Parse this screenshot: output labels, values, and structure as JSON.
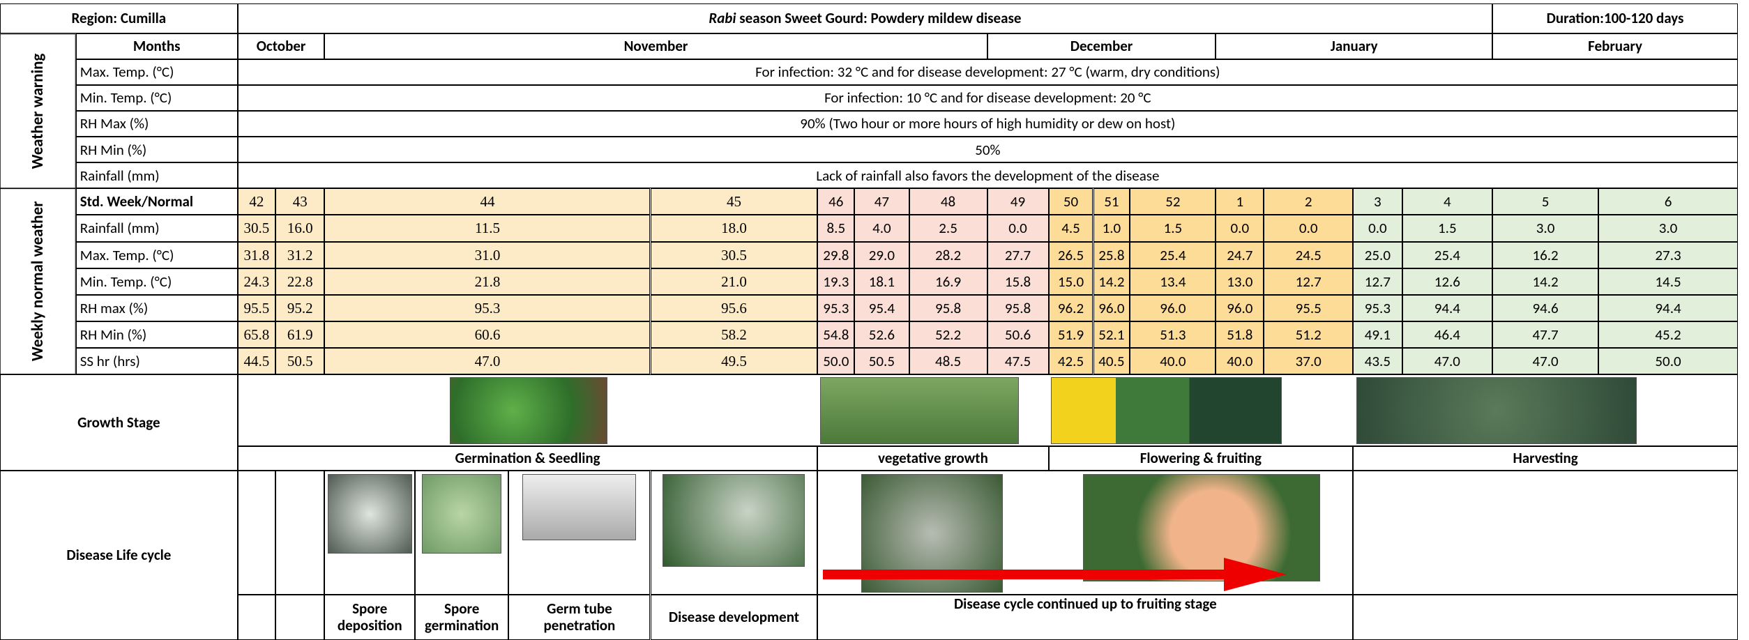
{
  "header": {
    "region": "Region: Cumilla",
    "title_italic": "Rabi",
    "title_rest": " season Sweet Gourd: Powdery mildew disease",
    "duration": "Duration:100-120 days"
  },
  "months": {
    "label": "Months",
    "items": [
      "October",
      "November",
      "December",
      "January",
      "February"
    ]
  },
  "weather_warning": {
    "label": "Weather warning",
    "rows": [
      {
        "label": "Max. Temp. (°C)",
        "text": "For infection: 32 °C and for disease development: 27 °C (warm, dry conditions)"
      },
      {
        "label": "Min. Temp. (°C)",
        "text": "For infection: 10 °C and for disease development: 20 °C"
      },
      {
        "label": "RH Max (%)",
        "text": "90% (Two hour or more hours of high humidity or dew on host)"
      },
      {
        "label": "RH Min (%)",
        "text": "50%"
      },
      {
        "label": "Rainfall (mm)",
        "text": "Lack of rainfall also favors the development of the disease"
      }
    ]
  },
  "weekly": {
    "label": "Weekly normal weather",
    "header_label": "Std. Week/Normal",
    "weeks": [
      "42",
      "43",
      "44",
      "45",
      "46",
      "47",
      "48",
      "49",
      "50",
      "51",
      "52",
      "1",
      "2",
      "3",
      "4",
      "5",
      "6"
    ],
    "rows": [
      {
        "label": "Rainfall (mm)",
        "values": [
          "30.5",
          "16.0",
          "11.5",
          "18.0",
          "8.5",
          "4.0",
          "2.5",
          "0.0",
          "4.5",
          "1.0",
          "1.5",
          "0.0",
          "0.0",
          "0.0",
          "1.5",
          "3.0",
          "3.0"
        ]
      },
      {
        "label": "Max. Temp. (°C)",
        "values": [
          "31.8",
          "31.2",
          "31.0",
          "30.5",
          "29.8",
          "29.0",
          "28.2",
          "27.7",
          "26.5",
          "25.8",
          "25.4",
          "24.7",
          "24.5",
          "25.0",
          "25.4",
          "16.2",
          "27.3"
        ]
      },
      {
        "label": "Min. Temp. (°C)",
        "values": [
          "24.3",
          "22.8",
          "21.8",
          "21.0",
          "19.3",
          "18.1",
          "16.9",
          "15.8",
          "15.0",
          "14.2",
          "13.4",
          "13.0",
          "12.7",
          "12.7",
          "12.6",
          "14.2",
          "14.5"
        ]
      },
      {
        "label": "RH max (%)",
        "values": [
          "95.5",
          "95.2",
          "95.3",
          "95.6",
          "95.3",
          "95.4",
          "95.8",
          "95.8",
          "96.2",
          "96.0",
          "96.0",
          "96.0",
          "95.5",
          "95.3",
          "94.4",
          "94.6",
          "94.4"
        ]
      },
      {
        "label": "RH Min (%)",
        "values": [
          "65.8",
          "61.9",
          "60.6",
          "58.2",
          "54.8",
          "52.6",
          "52.2",
          "50.6",
          "51.9",
          "52.1",
          "51.3",
          "51.8",
          "51.2",
          "49.1",
          "46.4",
          "47.7",
          "45.2"
        ]
      },
      {
        "label": "SS hr (hrs)",
        "values": [
          "44.5",
          "50.5",
          "47.0",
          "49.5",
          "50.0",
          "50.5",
          "48.5",
          "47.5",
          "42.5",
          "40.5",
          "40.0",
          "40.0",
          "37.0",
          "43.5",
          "47.0",
          "47.0",
          "50.0"
        ]
      }
    ]
  },
  "growth": {
    "label": "Growth Stage",
    "stages": [
      "Germination & Seedling",
      "vegetative growth",
      "Flowering & fruiting",
      "Harvesting"
    ]
  },
  "disease": {
    "label": "Disease Life cycle",
    "steps": [
      "Spore deposition",
      "Spore germination",
      "Germ tube penetration",
      "Disease development",
      "Disease cycle continued up to fruiting stage"
    ]
  }
}
